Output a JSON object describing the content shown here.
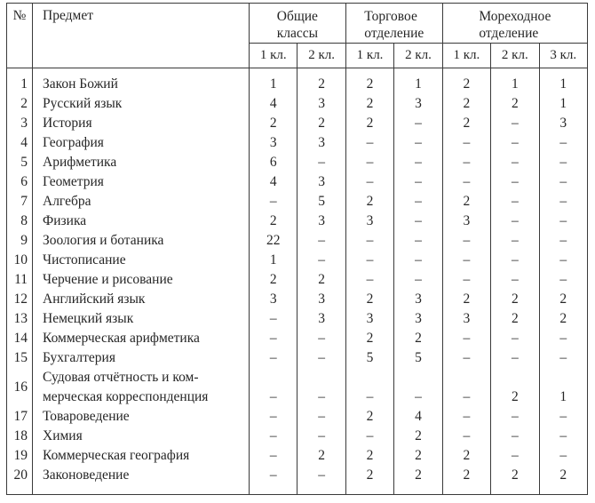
{
  "table": {
    "number_header": "№",
    "subject_header": "Предмет",
    "groups": [
      {
        "line1": "Общие",
        "line2": "классы"
      },
      {
        "line1": "Торговое",
        "line2": "отделение"
      },
      {
        "line1": "Мореходное",
        "line2": "отделение"
      }
    ],
    "subheaders": [
      "1 кл.",
      "2 кл.",
      "1 кл.",
      "2 кл.",
      "1 кл.",
      "2 кл.",
      "3 кл."
    ],
    "rows": [
      {
        "num": "1",
        "subject": "Закон Божий",
        "values": [
          "1",
          "2",
          "2",
          "1",
          "2",
          "1",
          "1"
        ]
      },
      {
        "num": "2",
        "subject": "Русский язык",
        "values": [
          "4",
          "3",
          "2",
          "3",
          "2",
          "2",
          "1"
        ]
      },
      {
        "num": "3",
        "subject": "История",
        "values": [
          "2",
          "2",
          "2",
          "–",
          "2",
          "–",
          "3"
        ]
      },
      {
        "num": "4",
        "subject": "География",
        "values": [
          "3",
          "3",
          "–",
          "–",
          "–",
          "–",
          "–"
        ]
      },
      {
        "num": "5",
        "subject": "Арифметика",
        "values": [
          "6",
          "–",
          "–",
          "–",
          "–",
          "–",
          "–"
        ]
      },
      {
        "num": "6",
        "subject": "Геометрия",
        "values": [
          "4",
          "3",
          "–",
          "–",
          "–",
          "–",
          "–"
        ]
      },
      {
        "num": "7",
        "subject": "Алгебра",
        "values": [
          "–",
          "5",
          "2",
          "–",
          "2",
          "–",
          "–"
        ]
      },
      {
        "num": "8",
        "subject": "Физика",
        "values": [
          "2",
          "3",
          "3",
          "–",
          "3",
          "–",
          "–"
        ]
      },
      {
        "num": "9",
        "subject": "Зоология и ботаника",
        "values": [
          "22",
          "–",
          "–",
          "–",
          "–",
          "–",
          "–"
        ]
      },
      {
        "num": "10",
        "subject": "Чистописание",
        "values": [
          "1",
          "–",
          "–",
          "–",
          "–",
          "–",
          "–"
        ]
      },
      {
        "num": "11",
        "subject": "Черчение и рисование",
        "values": [
          "2",
          "2",
          "–",
          "–",
          "–",
          "–",
          "–"
        ]
      },
      {
        "num": "12",
        "subject": "Английский язык",
        "values": [
          "3",
          "3",
          "2",
          "3",
          "2",
          "2",
          "2"
        ]
      },
      {
        "num": "13",
        "subject": "Немецкий язык",
        "values": [
          "–",
          "3",
          "3",
          "3",
          "3",
          "2",
          "2"
        ]
      },
      {
        "num": "14",
        "subject": "Коммерческая арифметика",
        "values": [
          "–",
          "–",
          "2",
          "2",
          "–",
          "–",
          "–"
        ]
      },
      {
        "num": "15",
        "subject": "Бухгалтерия",
        "values": [
          "–",
          "–",
          "5",
          "5",
          "–",
          "–",
          "–"
        ]
      },
      {
        "num": "16",
        "subject": "Судовая отчётность и ком-",
        "subject_line2": "мерческая корреспонденция",
        "values": [
          "–",
          "–",
          "–",
          "–",
          "–",
          "2",
          "1"
        ]
      },
      {
        "num": "17",
        "subject": "Товароведение",
        "values": [
          "–",
          "–",
          "2",
          "4",
          "–",
          "–",
          "–"
        ]
      },
      {
        "num": "18",
        "subject": "Химия",
        "values": [
          "–",
          "–",
          "–",
          "2",
          "–",
          "–",
          "–"
        ]
      },
      {
        "num": "19",
        "subject": "Коммерческая география",
        "values": [
          "–",
          "2",
          "2",
          "2",
          "2",
          "–",
          "–"
        ]
      },
      {
        "num": "20",
        "subject": "Законоведение",
        "values": [
          "–",
          "–",
          "2",
          "2",
          "2",
          "2",
          "2"
        ]
      }
    ]
  }
}
